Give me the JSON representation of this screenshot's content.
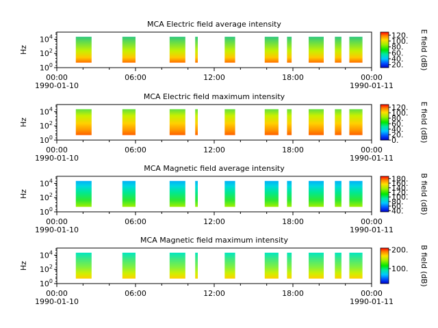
{
  "x_ticks": [
    {
      "time": "00:00",
      "date": "1990-01-10"
    },
    {
      "time": "06:00",
      "date": ""
    },
    {
      "time": "12:00",
      "date": ""
    },
    {
      "time": "18:00",
      "date": ""
    },
    {
      "time": "00:00",
      "date": "1990-01-11"
    }
  ],
  "chart_data": [
    {
      "type": "heatmap",
      "title": "MCA  Electric field average intensity",
      "ylabel": "Hz",
      "yscale": "log",
      "y_ticks": [
        "10^0",
        "10^2",
        "10^4"
      ],
      "y_range": [
        1,
        100000
      ],
      "x_range": [
        "1990-01-10 00:00",
        "1990-01-11 00:00"
      ],
      "colorbar_label": "E field (dB)",
      "colorbar_ticks": [
        "120.",
        "100.",
        "80.",
        "60.",
        "40.",
        "20."
      ],
      "colorbar_range": [
        10,
        130
      ],
      "data_intervals_hours": [
        [
          1.45,
          2.65
        ],
        [
          5.0,
          6.0
        ],
        [
          8.6,
          9.8
        ],
        [
          10.55,
          10.75
        ],
        [
          12.8,
          13.6
        ],
        [
          15.85,
          16.9
        ],
        [
          17.55,
          17.9
        ],
        [
          19.2,
          20.35
        ],
        [
          21.2,
          21.7
        ],
        [
          22.3,
          23.3
        ]
      ]
    },
    {
      "type": "heatmap",
      "title": "MCA  Electric field maximum intensity",
      "ylabel": "Hz",
      "yscale": "log",
      "y_ticks": [
        "10^0",
        "10^2",
        "10^4"
      ],
      "y_range": [
        1,
        100000
      ],
      "x_range": [
        "1990-01-10 00:00",
        "1990-01-11 00:00"
      ],
      "colorbar_label": "E field (dB)",
      "colorbar_ticks": [
        "120.",
        "100.",
        "80.",
        "60.",
        "40.",
        "20.",
        "0."
      ],
      "colorbar_range": [
        0,
        130
      ],
      "data_intervals_hours": [
        [
          1.45,
          2.65
        ],
        [
          5.0,
          6.0
        ],
        [
          8.6,
          9.8
        ],
        [
          10.55,
          10.75
        ],
        [
          12.8,
          13.6
        ],
        [
          15.85,
          16.9
        ],
        [
          17.55,
          17.9
        ],
        [
          19.2,
          20.35
        ],
        [
          21.2,
          21.7
        ],
        [
          22.3,
          23.3
        ]
      ]
    },
    {
      "type": "heatmap",
      "title": "MCA  Magnetic field average intensity",
      "ylabel": "Hz",
      "yscale": "log",
      "y_ticks": [
        "10^0",
        "10^2",
        "10^4"
      ],
      "y_range": [
        1,
        100000
      ],
      "x_range": [
        "1990-01-10 00:00",
        "1990-01-11 00:00"
      ],
      "colorbar_label": "B field (dB)",
      "colorbar_ticks": [
        "180.",
        "160.",
        "140.",
        "120.",
        "100.",
        "80.",
        "60.",
        "40."
      ],
      "colorbar_range": [
        35,
        190
      ],
      "data_intervals_hours": [
        [
          1.45,
          2.65
        ],
        [
          5.0,
          6.0
        ],
        [
          8.6,
          9.8
        ],
        [
          10.55,
          10.75
        ],
        [
          12.8,
          13.6
        ],
        [
          15.85,
          16.9
        ],
        [
          17.55,
          17.9
        ],
        [
          19.2,
          20.35
        ],
        [
          21.2,
          21.7
        ],
        [
          22.3,
          23.3
        ]
      ]
    },
    {
      "type": "heatmap",
      "title": "MCA  Magnetic field maximum intensity",
      "ylabel": "Hz",
      "yscale": "log",
      "y_ticks": [
        "10^0",
        "10^2",
        "10^4"
      ],
      "y_range": [
        1,
        100000
      ],
      "x_range": [
        "1990-01-10 00:00",
        "1990-01-11 00:00"
      ],
      "colorbar_label": "B field (dB)",
      "colorbar_ticks": [
        "200.",
        "100."
      ],
      "colorbar_range": [
        20,
        210
      ],
      "data_intervals_hours": [
        [
          1.45,
          2.65
        ],
        [
          5.0,
          6.0
        ],
        [
          8.6,
          9.8
        ],
        [
          10.55,
          10.75
        ],
        [
          12.8,
          13.6
        ],
        [
          15.85,
          16.9
        ],
        [
          17.55,
          17.9
        ],
        [
          19.2,
          20.35
        ],
        [
          21.2,
          21.7
        ],
        [
          22.3,
          23.3
        ]
      ]
    }
  ]
}
